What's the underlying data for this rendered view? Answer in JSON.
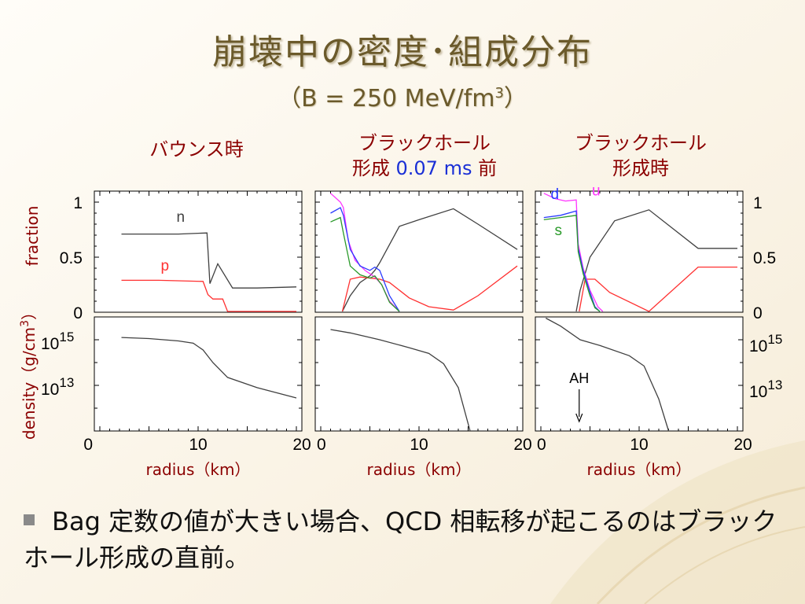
{
  "title": "崩壊中の密度･組成分布",
  "subtitle": "（B = 250 MeV/fm",
  "subtitle_sup": "3",
  "subtitle_end": "）",
  "panel_headers": [
    {
      "line1": "バウンス時"
    },
    {
      "line1": "ブラックホール",
      "line2a": "形成 ",
      "line2b": "0.07 ms",
      "line2c": " 前"
    },
    {
      "line1": "ブラックホール",
      "line2a": "形成時"
    }
  ],
  "bullet": "Bag 定数の値が大きい場合、QCD 相転移が起こるのはブラックホール形成の直前。",
  "colors": {
    "n": "#404040",
    "p": "#ff3030",
    "u": "#ff33ff",
    "d": "#2a3aff",
    "s": "#2a9a2a",
    "label": "#8b0000",
    "axis": "#000000"
  },
  "chart_data": {
    "type": "line",
    "xlabel": "radius（km）",
    "xlim": [
      0,
      20
    ],
    "x_ticks": [
      "0",
      "10",
      "20"
    ],
    "fraction_axis": {
      "label": "fraction",
      "ticks": [
        "0",
        "0.5",
        "1"
      ],
      "ylim": [
        0,
        1.1
      ]
    },
    "density_axis": {
      "label": "density（g/cm",
      "label_sup": "3",
      "label_end": "）",
      "ticks": [
        {
          "base": "10",
          "exp": "15"
        },
        {
          "base": "10",
          "exp": "13"
        }
      ],
      "log_ylim": [
        11.0,
        16.0
      ]
    },
    "panels": [
      {
        "name": "bounce",
        "fraction_series": [
          {
            "name": "n",
            "x": [
              2.2,
              5,
              8,
              10.9,
              11.2,
              12,
              13.5,
              16,
              20
            ],
            "values": [
              0.71,
              0.71,
              0.71,
              0.72,
              0.26,
              0.44,
              0.22,
              0.22,
              0.23
            ]
          },
          {
            "name": "p",
            "x": [
              2.2,
              6,
              10.5,
              11,
              11.5,
              12.5,
              13,
              16,
              20
            ],
            "values": [
              0.29,
              0.29,
              0.28,
              0.16,
              0.12,
              0.12,
              0.0,
              0.0,
              0.0
            ]
          }
        ],
        "density": {
          "x": [
            2.2,
            5,
            8,
            9.5,
            10.5,
            11.5,
            13,
            16,
            20
          ],
          "values": [
            15.1,
            15.05,
            14.95,
            14.85,
            14.55,
            14.0,
            13.35,
            12.9,
            12.45
          ]
        },
        "labels": [
          {
            "text": "n",
            "series": "n",
            "x": 7.8,
            "y": 0.82
          },
          {
            "text": "p",
            "series": "p",
            "x": 6.2,
            "y": 0.38
          }
        ]
      },
      {
        "name": "pre-bh",
        "fraction_series": [
          {
            "name": "n",
            "x": [
              2.2,
              3,
              4,
              5,
              5.5,
              6,
              8,
              10,
              13.5,
              16,
              20
            ],
            "values": [
              0.0,
              0.15,
              0.27,
              0.33,
              0.38,
              0.45,
              0.78,
              0.84,
              0.94,
              0.8,
              0.57
            ]
          },
          {
            "name": "p",
            "x": [
              2.2,
              3,
              4,
              6,
              7,
              9,
              11,
              13.5,
              16,
              20
            ],
            "values": [
              0.0,
              0.3,
              0.32,
              0.3,
              0.27,
              0.13,
              0.05,
              0.02,
              0.15,
              0.42
            ]
          },
          {
            "name": "u",
            "x": [
              1.0,
              2.0,
              2.3,
              2.8,
              3.5,
              4.5,
              5.5,
              6.2,
              7.0,
              8.0
            ],
            "values": [
              1.08,
              1.0,
              0.95,
              0.65,
              0.47,
              0.38,
              0.32,
              0.25,
              0.1,
              0.0
            ]
          },
          {
            "name": "d",
            "x": [
              1.0,
              2.0,
              2.3,
              3.0,
              4.0,
              5.0,
              5.5,
              6.0,
              7.0,
              8.0
            ],
            "values": [
              0.9,
              0.95,
              0.88,
              0.57,
              0.42,
              0.38,
              0.41,
              0.38,
              0.15,
              0.0
            ]
          },
          {
            "name": "s",
            "x": [
              1.0,
              2.0,
              2.3,
              3.0,
              4.0,
              5.0,
              5.5,
              6.2,
              7.0,
              8.0
            ],
            "values": [
              0.82,
              0.86,
              0.72,
              0.42,
              0.34,
              0.31,
              0.33,
              0.25,
              0.09,
              0.0
            ]
          }
        ],
        "density": {
          "x": [
            1.0,
            3,
            6,
            9,
            11,
            12.5,
            14,
            15.2
          ],
          "values": [
            15.45,
            15.3,
            15.0,
            14.65,
            14.4,
            13.95,
            12.9,
            11.0
          ]
        },
        "labels": []
      },
      {
        "name": "bh",
        "fraction_series": [
          {
            "name": "n",
            "x": [
              3.6,
              4.0,
              5,
              7.5,
              11,
              16,
              20
            ],
            "values": [
              0.0,
              0.2,
              0.5,
              0.83,
              0.93,
              0.58,
              0.58
            ]
          },
          {
            "name": "p",
            "x": [
              3.9,
              4.5,
              5.5,
              7,
              11,
              16,
              20
            ],
            "values": [
              0.0,
              0.3,
              0.3,
              0.18,
              0.0,
              0.41,
              0.41
            ]
          },
          {
            "name": "u",
            "x": [
              0.3,
              1.5,
              2.5,
              3.6,
              3.8,
              4.3,
              5.0,
              5.8,
              6.3
            ],
            "values": [
              1.08,
              1.03,
              1.01,
              1.02,
              0.62,
              0.4,
              0.2,
              0.05,
              0.0
            ]
          },
          {
            "name": "d",
            "x": [
              0.3,
              2.0,
              3.6,
              3.8,
              4.3,
              5.0,
              5.5,
              6.0
            ],
            "values": [
              0.86,
              0.88,
              0.92,
              0.58,
              0.38,
              0.18,
              0.05,
              0.0
            ]
          },
          {
            "name": "s",
            "x": [
              0.3,
              2.0,
              3.6,
              3.8,
              4.3,
              5.0,
              5.5,
              6.0
            ],
            "values": [
              0.84,
              0.86,
              0.88,
              0.55,
              0.35,
              0.15,
              0.04,
              0.0
            ]
          }
        ],
        "density": {
          "x": [
            0.5,
            2,
            4,
            6,
            9,
            10.5,
            12,
            13
          ],
          "values": [
            15.95,
            15.6,
            15.0,
            14.75,
            14.3,
            13.85,
            12.4,
            11.0
          ]
        },
        "labels": [
          {
            "text": "d",
            "series": "d",
            "x": 1.0,
            "y": 1.03
          },
          {
            "text": "u",
            "series": "u",
            "x": 5.2,
            "y": 1.06
          },
          {
            "text": "s",
            "series": "s",
            "x": 1.4,
            "y": 0.7
          }
        ],
        "annotation": {
          "text": "AH",
          "x": 3.9
        }
      }
    ]
  }
}
